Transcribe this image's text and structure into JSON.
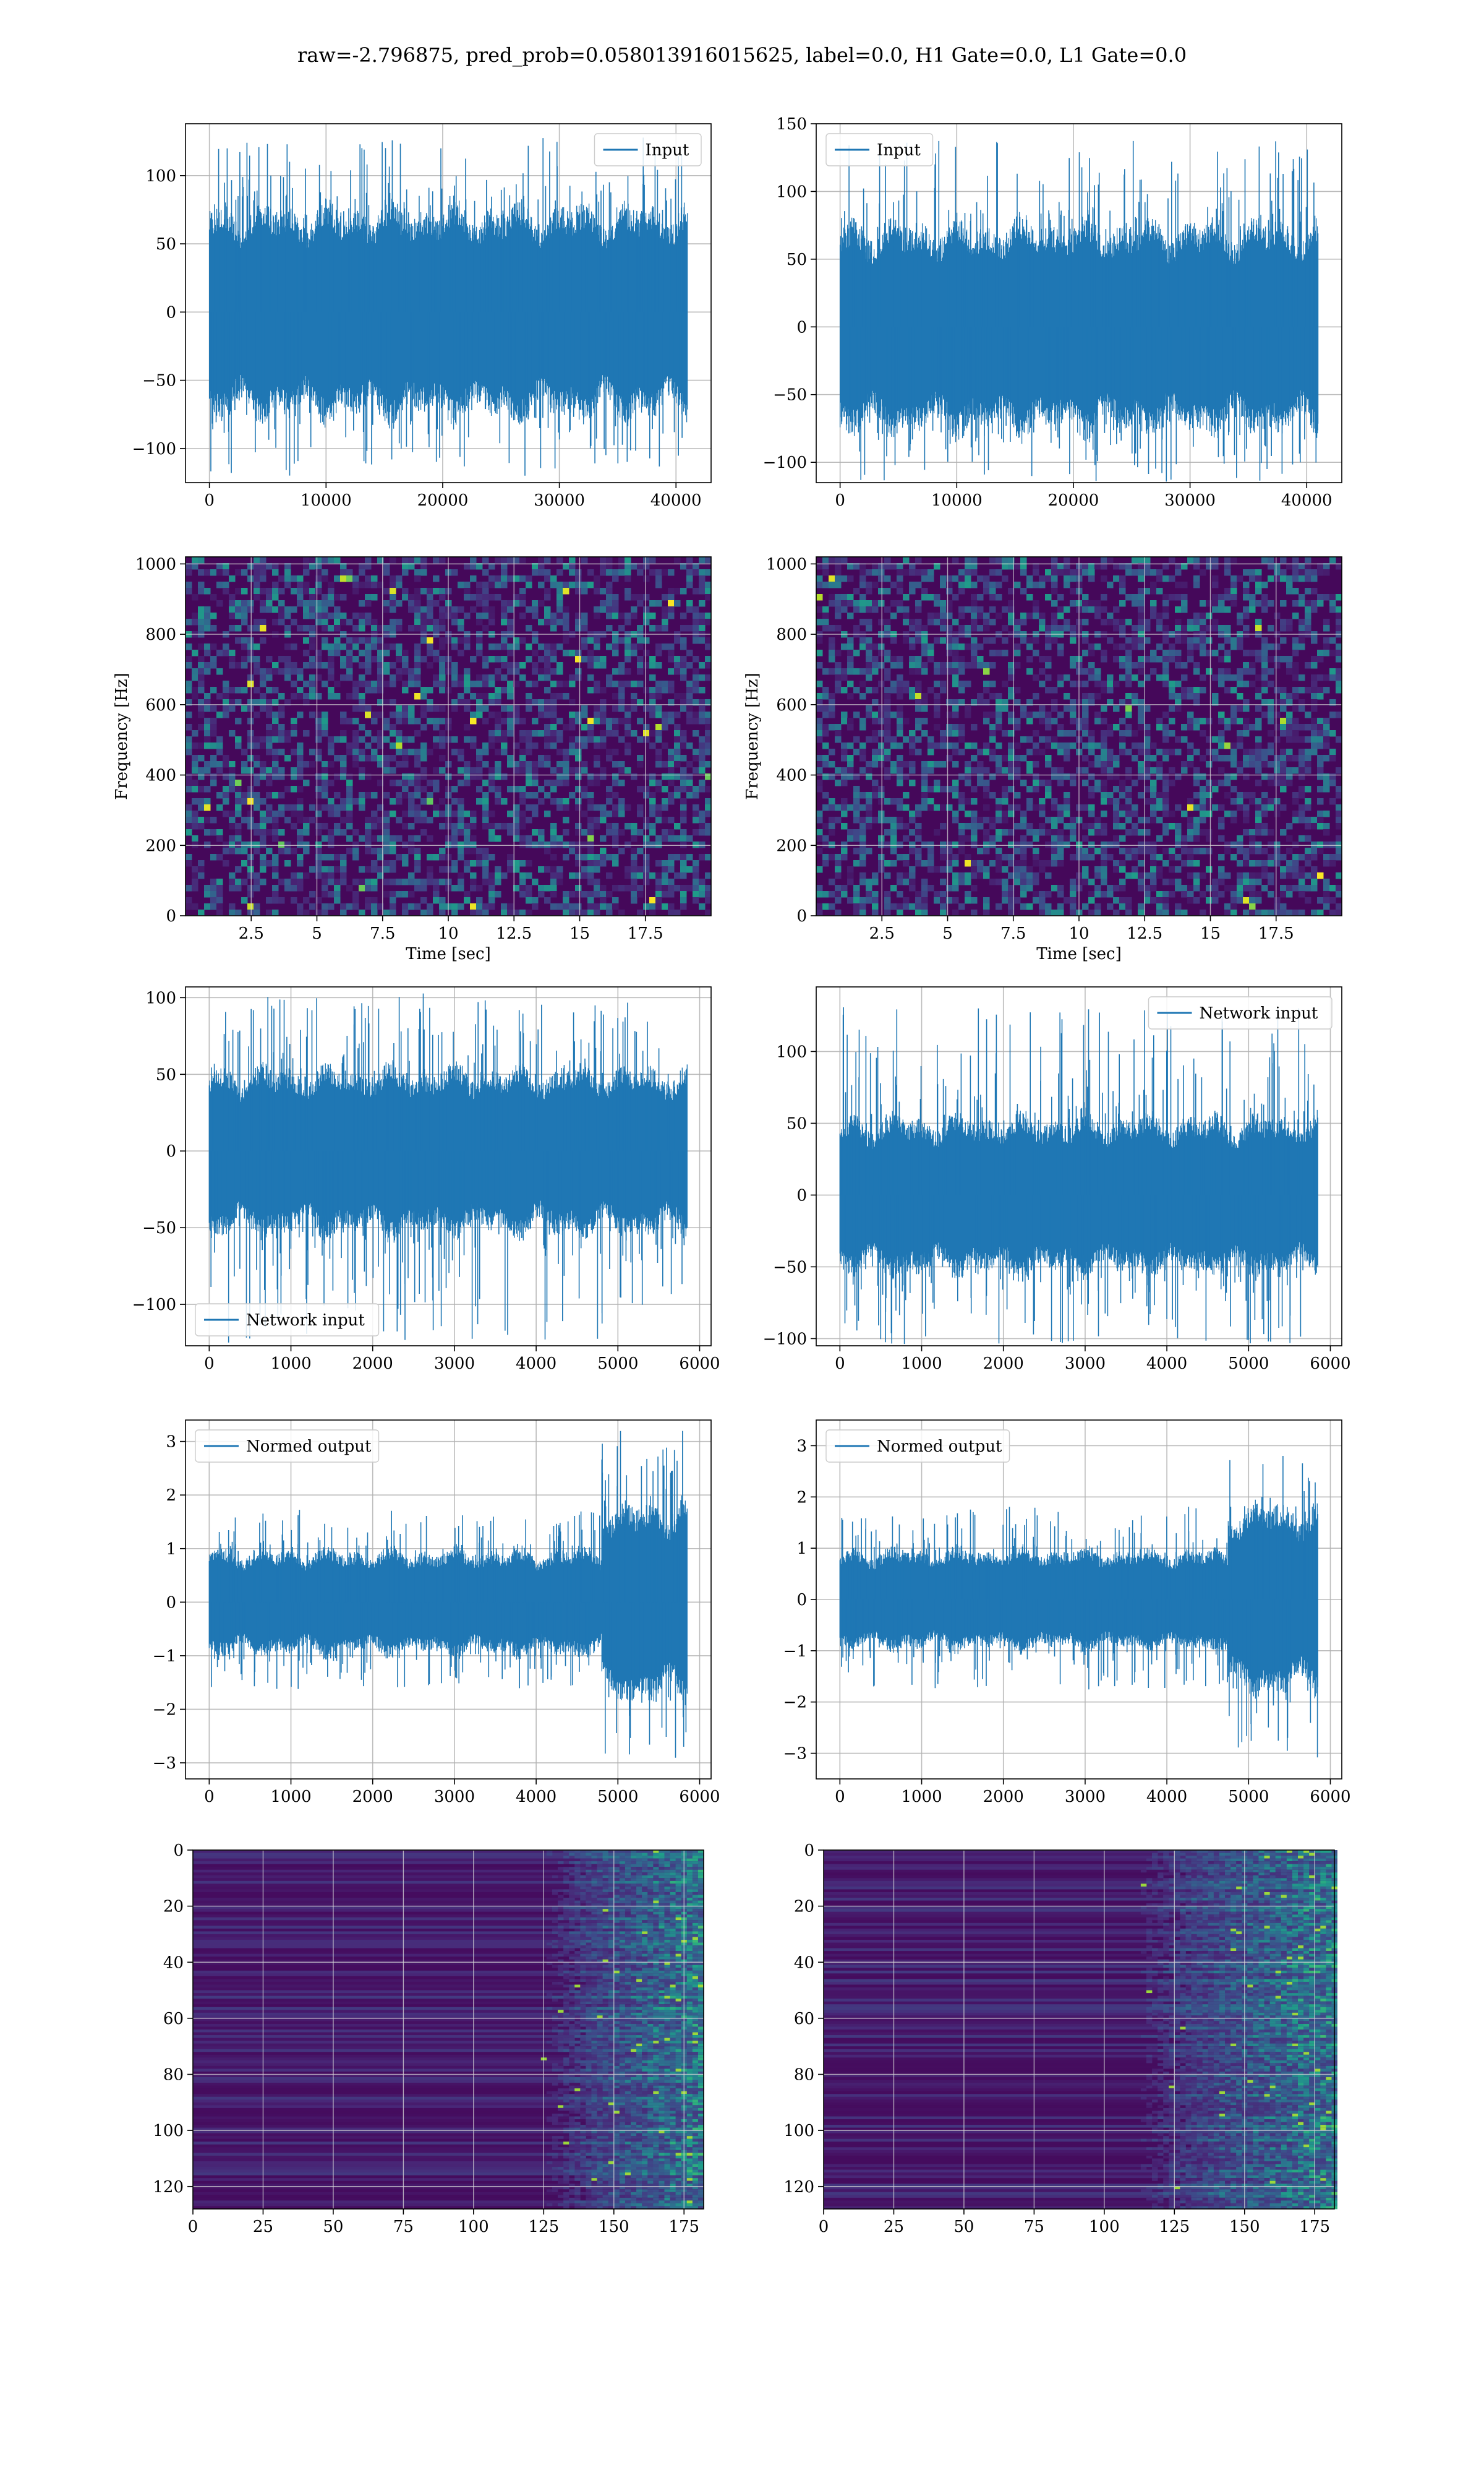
{
  "figure": {
    "title": "raw=-2.796875, pred_prob=0.058013916015625, label=0.0, H1 Gate=0.0, L1 Gate=0.0",
    "line_color": "#1f77b4",
    "grid_color": "#b0b0b0"
  },
  "chart_data": [
    {
      "id": "input_h1",
      "type": "line",
      "legend": "Input",
      "legend_loc": "upper right",
      "x_range": [
        0,
        40960
      ],
      "xlim": [
        -2048,
        43008
      ],
      "ylim": [
        -125,
        138
      ],
      "xticks": [
        0,
        10000,
        20000,
        30000,
        40000
      ],
      "yticks": [
        -100,
        -50,
        0,
        50,
        100
      ],
      "envelope": {
        "core": 60,
        "peak_max": 128,
        "peak_min": -120
      },
      "xlabel": "",
      "ylabel": ""
    },
    {
      "id": "input_l1",
      "type": "line",
      "legend": "Input",
      "legend_loc": "upper left",
      "x_range": [
        0,
        40960
      ],
      "xlim": [
        -2048,
        43008
      ],
      "ylim": [
        -115,
        150
      ],
      "xticks": [
        0,
        10000,
        20000,
        30000,
        40000
      ],
      "yticks": [
        -100,
        -50,
        0,
        50,
        100,
        150
      ],
      "envelope": {
        "core": 60,
        "peak_max": 138,
        "peak_min": -115
      },
      "xlabel": "",
      "ylabel": ""
    },
    {
      "id": "spec_h1",
      "type": "heatmap",
      "xlim": [
        0,
        20
      ],
      "ylim": [
        0,
        1020
      ],
      "xticks": [
        2.5,
        5.0,
        7.5,
        10.0,
        12.5,
        15.0,
        17.5
      ],
      "yticks": [
        0,
        200,
        400,
        600,
        800,
        1000
      ],
      "xlabel": "Time [sec]",
      "ylabel": "Frequency [Hz]"
    },
    {
      "id": "spec_l1",
      "type": "heatmap",
      "xlim": [
        0,
        20
      ],
      "ylim": [
        0,
        1020
      ],
      "xticks": [
        2.5,
        5.0,
        7.5,
        10.0,
        12.5,
        15.0,
        17.5
      ],
      "yticks": [
        0,
        200,
        400,
        600,
        800,
        1000
      ],
      "xlabel": "Time [sec]",
      "ylabel": "Frequency [Hz]"
    },
    {
      "id": "net_h1",
      "type": "line",
      "legend": "Network input",
      "legend_loc": "lower left",
      "x_range": [
        0,
        5850
      ],
      "xlim": [
        -290,
        6140
      ],
      "ylim": [
        -127,
        107
      ],
      "xticks": [
        0,
        1000,
        2000,
        3000,
        4000,
        5000,
        6000
      ],
      "yticks": [
        -100,
        -50,
        0,
        50,
        100
      ],
      "envelope": {
        "core": 42,
        "peak_max": 103,
        "peak_min": -126
      },
      "xlabel": "",
      "ylabel": ""
    },
    {
      "id": "net_l1",
      "type": "line",
      "legend": "Network input",
      "legend_loc": "upper right",
      "x_range": [
        0,
        5850
      ],
      "xlim": [
        -290,
        6140
      ],
      "ylim": [
        -105,
        145
      ],
      "xticks": [
        0,
        1000,
        2000,
        3000,
        4000,
        5000,
        6000
      ],
      "yticks": [
        -100,
        -50,
        0,
        50,
        100
      ],
      "envelope": {
        "core": 42,
        "peak_max": 132,
        "peak_min": -104
      },
      "xlabel": "",
      "ylabel": ""
    },
    {
      "id": "norm_h1",
      "type": "line",
      "legend": "Normed output",
      "legend_loc": "upper left",
      "x_range": [
        0,
        5850
      ],
      "xlim": [
        -290,
        6140
      ],
      "ylim": [
        -3.3,
        3.4
      ],
      "xticks": [
        0,
        1000,
        2000,
        3000,
        4000,
        5000,
        6000
      ],
      "yticks": [
        -3,
        -2,
        -1,
        0,
        1,
        2,
        3
      ],
      "envelope": {
        "core": 0.75,
        "peak_max": 3.2,
        "peak_min": -2.95
      },
      "burst_start": 4800,
      "xlabel": "",
      "ylabel": ""
    },
    {
      "id": "norm_l1",
      "type": "line",
      "legend": "Normed output",
      "legend_loc": "upper left",
      "x_range": [
        0,
        5850
      ],
      "xlim": [
        -290,
        6140
      ],
      "ylim": [
        -3.5,
        3.5
      ],
      "xticks": [
        0,
        1000,
        2000,
        3000,
        4000,
        5000,
        6000
      ],
      "yticks": [
        -3,
        -2,
        -1,
        0,
        1,
        2,
        3
      ],
      "envelope": {
        "core": 0.75,
        "peak_max": 3.3,
        "peak_min": -3.2
      },
      "burst_start": 4750,
      "xlabel": "",
      "ylabel": ""
    },
    {
      "id": "feat_h1",
      "type": "heatmap",
      "xlim": [
        0,
        182
      ],
      "ylim": [
        128,
        0
      ],
      "xticks": [
        0,
        25,
        50,
        75,
        100,
        125,
        150,
        175
      ],
      "yticks": [
        0,
        20,
        40,
        60,
        80,
        100,
        120
      ],
      "activity_start": 120,
      "xlabel": "",
      "ylabel": ""
    },
    {
      "id": "feat_l1",
      "type": "heatmap",
      "xlim": [
        0,
        182
      ],
      "ylim": [
        128,
        0
      ],
      "xticks": [
        0,
        25,
        50,
        75,
        100,
        125,
        150,
        175
      ],
      "yticks": [
        0,
        20,
        40,
        60,
        80,
        100,
        120
      ],
      "activity_start": 105,
      "xlabel": "",
      "ylabel": ""
    }
  ]
}
